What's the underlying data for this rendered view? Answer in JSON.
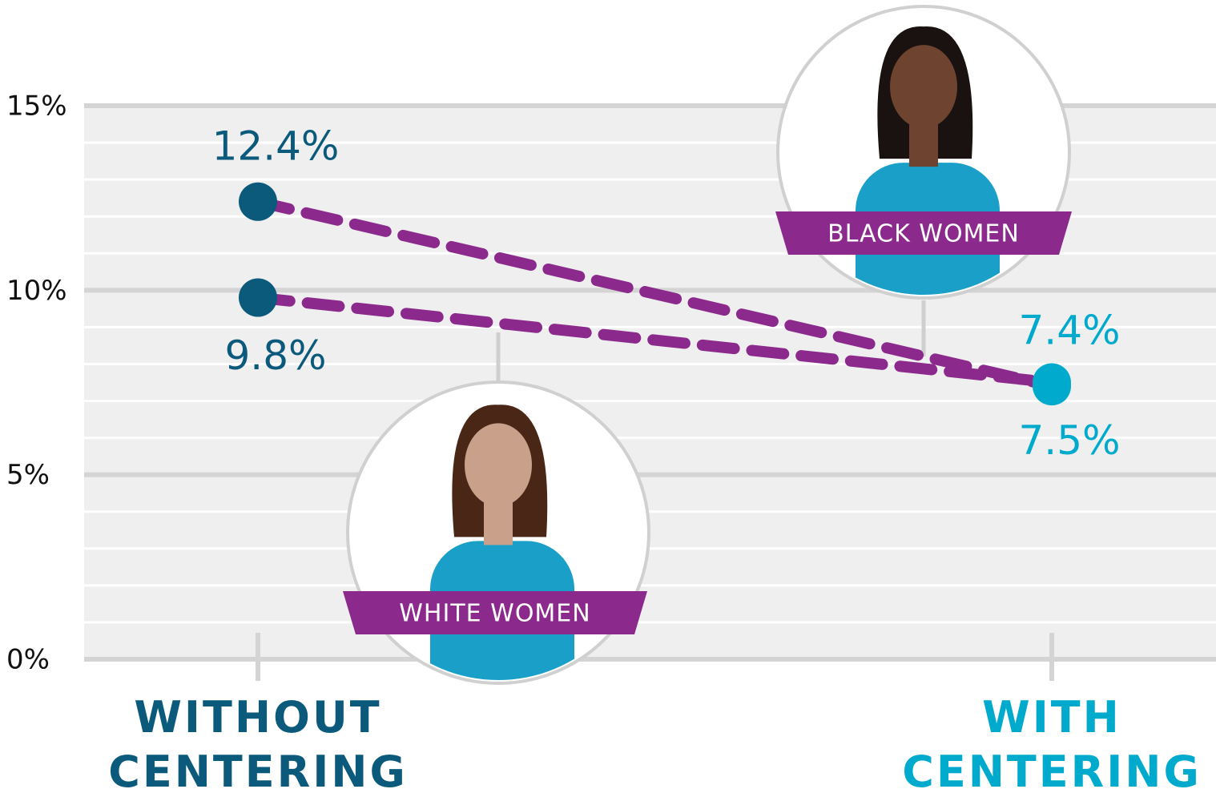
{
  "chart_data": {
    "type": "line",
    "categories": [
      "WITHOUT CENTERING",
      "WITH CENTERING"
    ],
    "category_colors": [
      "#0b5a7c",
      "#00aacc"
    ],
    "series": [
      {
        "name": "BLACK WOMEN",
        "color": "#8b2a8c",
        "values": [
          12.4,
          7.4
        ],
        "value_labels": [
          "12.4%",
          "7.4%"
        ]
      },
      {
        "name": "WHITE WOMEN",
        "color": "#8b2a8c",
        "values": [
          9.8,
          7.5
        ],
        "value_labels": [
          "9.8%",
          "7.5%"
        ]
      }
    ],
    "ylim": [
      0,
      15
    ],
    "yticks": [
      {
        "value": 0,
        "label": "0%"
      },
      {
        "value": 5,
        "label": "5%"
      },
      {
        "value": 10,
        "label": "10%"
      },
      {
        "value": 15,
        "label": "15%"
      }
    ],
    "grid": true,
    "minor_grid": true
  }
}
